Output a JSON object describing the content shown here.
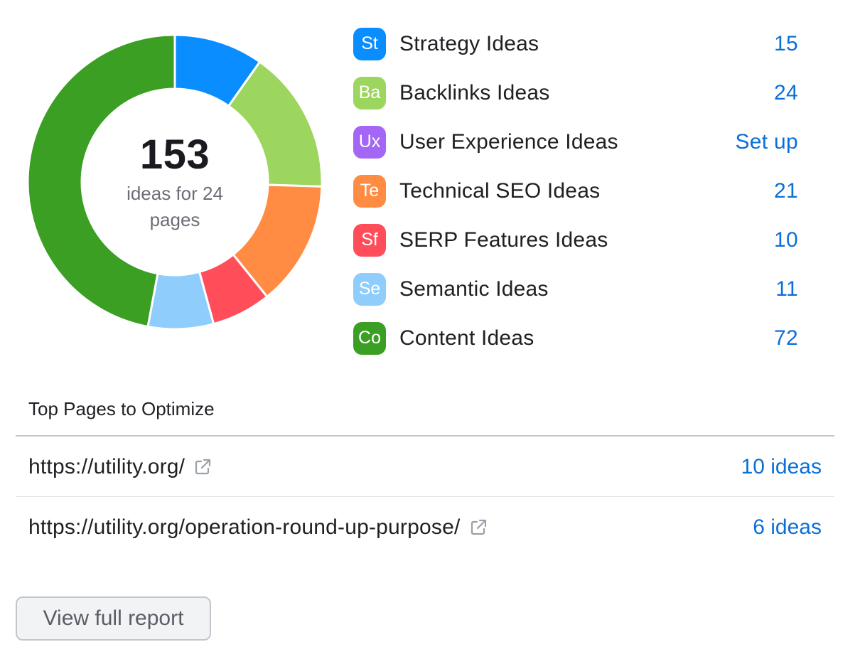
{
  "summary": {
    "total": "153",
    "subtitle": "ideas for 24 pages"
  },
  "chart_data": {
    "type": "pie",
    "categories": [
      "Strategy Ideas",
      "Backlinks Ideas",
      "Technical SEO Ideas",
      "SERP Features Ideas",
      "Semantic Ideas",
      "Content Ideas"
    ],
    "values": [
      15,
      24,
      21,
      10,
      11,
      72
    ],
    "colors": [
      "#0a8dff",
      "#9dd65f",
      "#ff8c42",
      "#ff4d5a",
      "#8fcdfd",
      "#3a9f22"
    ]
  },
  "legend": [
    {
      "abbr": "St",
      "label": "Strategy Ideas",
      "value": "15",
      "color": "#0a8dff"
    },
    {
      "abbr": "Ba",
      "label": "Backlinks Ideas",
      "value": "24",
      "color": "#9dd65f"
    },
    {
      "abbr": "Ux",
      "label": "User Experience Ideas",
      "value": "Set up",
      "color": "#a466f5"
    },
    {
      "abbr": "Te",
      "label": "Technical SEO Ideas",
      "value": "21",
      "color": "#ff8c42"
    },
    {
      "abbr": "Sf",
      "label": "SERP Features Ideas",
      "value": "10",
      "color": "#ff4d5a"
    },
    {
      "abbr": "Se",
      "label": "Semantic Ideas",
      "value": "11",
      "color": "#8fcdfd"
    },
    {
      "abbr": "Co",
      "label": "Content Ideas",
      "value": "72",
      "color": "#3a9f22"
    }
  ],
  "top_pages": {
    "title": "Top Pages to Optimize",
    "rows": [
      {
        "url": "https://utility.org/",
        "ideas": "10 ideas"
      },
      {
        "url": "https://utility.org/operation-round-up-purpose/",
        "ideas": "6 ideas"
      }
    ]
  },
  "buttons": {
    "view_full_report": "View full report"
  },
  "icons": {
    "external_link": "external-link-icon"
  },
  "colors": {
    "link": "#0a6fd6",
    "text": "#1f1f24",
    "muted": "#6b6e77"
  }
}
